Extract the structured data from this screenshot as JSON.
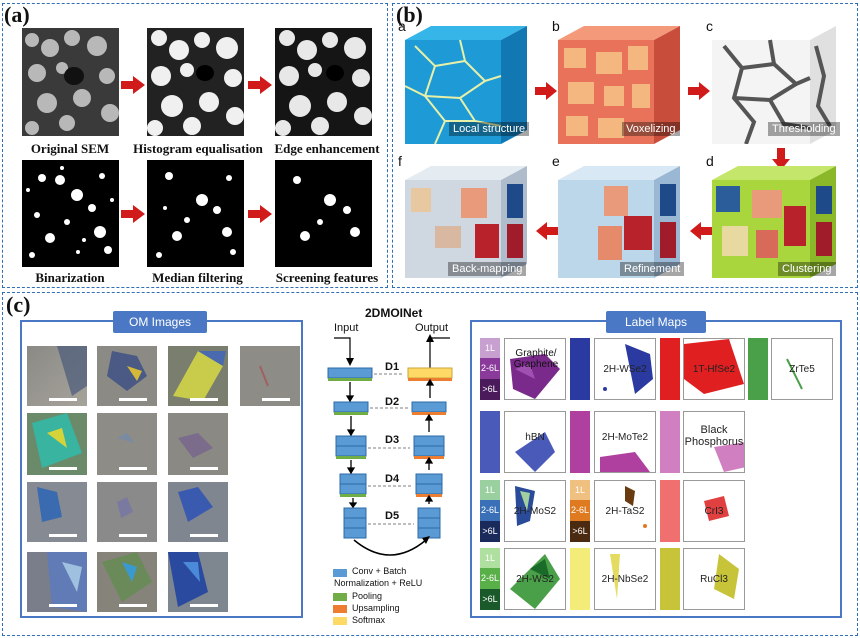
{
  "panel_a": {
    "label": "(a)",
    "captions": [
      "Original SEM",
      "Histogram equalisation",
      "Edge enhancement",
      "Binarization",
      "Median filtering",
      "Screening features"
    ]
  },
  "panel_b": {
    "label": "(b)",
    "cubes": [
      {
        "letter": "a",
        "label": "Local structure"
      },
      {
        "letter": "b",
        "label": "Voxelizing"
      },
      {
        "letter": "c",
        "label": "Thresholding"
      },
      {
        "letter": "d",
        "label": "Clustering"
      },
      {
        "letter": "e",
        "label": "Refinement"
      },
      {
        "letter": "f",
        "label": "Back-mapping"
      }
    ]
  },
  "panel_c": {
    "label": "(c)",
    "om_title": "OM Images",
    "label_maps_title": "Label Maps",
    "net_title": "2DMOINet",
    "input": "Input",
    "output": "Output",
    "levels": [
      "D1",
      "D2",
      "D3",
      "D4",
      "D5"
    ],
    "legend": [
      {
        "text": "Conv + Batch",
        "color": "#5b9bd5"
      },
      {
        "text": "Normalization + ReLU",
        "color": ""
      },
      {
        "text": "Pooling",
        "color": "#70ad47"
      },
      {
        "text": "Upsampling",
        "color": "#ed7d31"
      },
      {
        "text": "Softmax",
        "color": "#ffd966"
      }
    ],
    "legend_thickness": [
      "1L",
      "2-6L",
      ">6L"
    ],
    "materials": [
      "Graphite/ Graphene",
      "2H-WSe2",
      "1T-HfSe2",
      "ZrTe5",
      "hBN",
      "2H-MoTe2",
      "Black Phosphorus",
      "2H-MoS2",
      "2H-TaS2",
      "CrI3",
      "2H-WS2",
      "2H-NbSe2",
      "RuCl3"
    ]
  }
}
